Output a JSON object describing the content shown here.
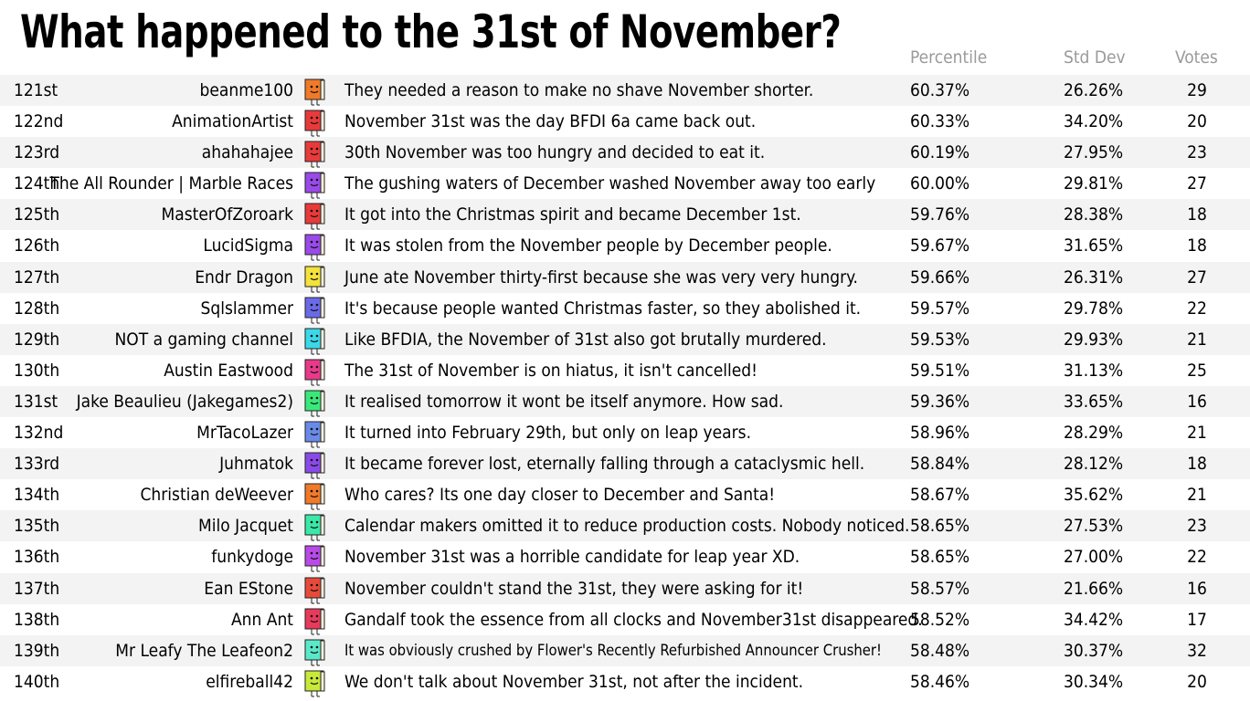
{
  "title": "What happened to the 31st of November?",
  "headers": {
    "percentile": "Percentile",
    "std_dev": "Std Dev",
    "votes": "Votes"
  },
  "rows": [
    {
      "rank": "121st",
      "name": "beanme100",
      "response": "They needed a reason to make no shave November shorter.",
      "percentile": "60.37%",
      "std_dev": "26.26%",
      "votes": "29",
      "book_color": "#f07a2a"
    },
    {
      "rank": "122nd",
      "name": "AnimationArtist",
      "response": "November 31st was the day BFDI 6a came back out.",
      "percentile": "60.33%",
      "std_dev": "34.20%",
      "votes": "20",
      "book_color": "#e83a3a"
    },
    {
      "rank": "123rd",
      "name": "ahahahajee",
      "response": "30th November was too hungry and decided to eat it.",
      "percentile": "60.19%",
      "std_dev": "27.95%",
      "votes": "23",
      "book_color": "#e83a3a"
    },
    {
      "rank": "124th",
      "name": "The All Rounder | Marble Races",
      "response": "The gushing waters of December washed November away too early",
      "percentile": "60.00%",
      "std_dev": "29.81%",
      "votes": "27",
      "book_color": "#9a4ae8"
    },
    {
      "rank": "125th",
      "name": "MasterOfZoroark",
      "response": "It got into the Christmas spirit and became December 1st.",
      "percentile": "59.76%",
      "std_dev": "28.38%",
      "votes": "18",
      "book_color": "#e83a3a"
    },
    {
      "rank": "126th",
      "name": "LucidSigma",
      "response": "It was stolen from the November people by December people.",
      "percentile": "59.67%",
      "std_dev": "31.65%",
      "votes": "18",
      "book_color": "#9a4ae8"
    },
    {
      "rank": "127th",
      "name": "Endr Dragon",
      "response": "June ate November thirty-first because she was very very hungry.",
      "percentile": "59.66%",
      "std_dev": "26.31%",
      "votes": "27",
      "book_color": "#f2e23a"
    },
    {
      "rank": "128th",
      "name": "Sqlslammer",
      "response": "It's because people wanted Christmas faster, so they abolished it.",
      "percentile": "59.57%",
      "std_dev": "29.78%",
      "votes": "22",
      "book_color": "#6a6ae8"
    },
    {
      "rank": "129th",
      "name": "NOT a gaming channel",
      "response": "Like BFDIA, the November of 31st also got brutally murdered.",
      "percentile": "59.53%",
      "std_dev": "29.93%",
      "votes": "21",
      "book_color": "#3ad8e8"
    },
    {
      "rank": "130th",
      "name": "Austin Eastwood",
      "response": "The 31st of November is on hiatus, it isn't cancelled!",
      "percentile": "59.51%",
      "std_dev": "31.13%",
      "votes": "25",
      "book_color": "#e83a8a"
    },
    {
      "rank": "131st",
      "name": "Jake Beaulieu (Jakegames2)",
      "response": "It realised tomorrow it wont be itself anymore. How sad.",
      "percentile": "59.36%",
      "std_dev": "33.65%",
      "votes": "16",
      "book_color": "#3ae87a"
    },
    {
      "rank": "132nd",
      "name": "MrTacoLazer",
      "response": "It turned into February 29th, but only on leap years.",
      "percentile": "58.96%",
      "std_dev": "28.29%",
      "votes": "21",
      "book_color": "#6a8ae8"
    },
    {
      "rank": "133rd",
      "name": "Juhmatok",
      "response": "It became forever lost, eternally falling through a cataclysmic hell.",
      "percentile": "58.84%",
      "std_dev": "28.12%",
      "votes": "18",
      "book_color": "#8a4ae8"
    },
    {
      "rank": "134th",
      "name": "Christian deWeever",
      "response": "Who cares? Its one day closer to December and Santa!",
      "percentile": "58.67%",
      "std_dev": "35.62%",
      "votes": "21",
      "book_color": "#f07a2a"
    },
    {
      "rank": "135th",
      "name": "Milo Jacquet",
      "response": "Calendar makers omitted it to reduce production costs. Nobody noticed.",
      "percentile": "58.65%",
      "std_dev": "27.53%",
      "votes": "23",
      "book_color": "#3ae8a8"
    },
    {
      "rank": "136th",
      "name": "funkydoge",
      "response": "November 31st was a horrible candidate for leap year XD.",
      "percentile": "58.65%",
      "std_dev": "27.00%",
      "votes": "22",
      "book_color": "#b84ae8"
    },
    {
      "rank": "137th",
      "name": "Ean EStone",
      "response": "November couldn't stand the 31st, they were asking for it!",
      "percentile": "58.57%",
      "std_dev": "21.66%",
      "votes": "16",
      "book_color": "#e84a3a"
    },
    {
      "rank": "138th",
      "name": "Ann Ant",
      "response": "Gandalf took the essence from all clocks and November31st disappeared.",
      "percentile": "58.52%",
      "std_dev": "34.42%",
      "votes": "17",
      "book_color": "#e83a5a"
    },
    {
      "rank": "139th",
      "name": "Mr Leafy The Leafeon2",
      "response": "It was obviously crushed by Flower's Recently Refurbished Announcer Crusher!",
      "percentile": "58.48%",
      "std_dev": "30.37%",
      "votes": "32",
      "book_color": "#5ae8c8"
    },
    {
      "rank": "140th",
      "name": "elfireball42",
      "response": "We don't talk about November 31st, not after the incident.",
      "percentile": "58.46%",
      "std_dev": "30.34%",
      "votes": "20",
      "book_color": "#c8e83a"
    }
  ]
}
